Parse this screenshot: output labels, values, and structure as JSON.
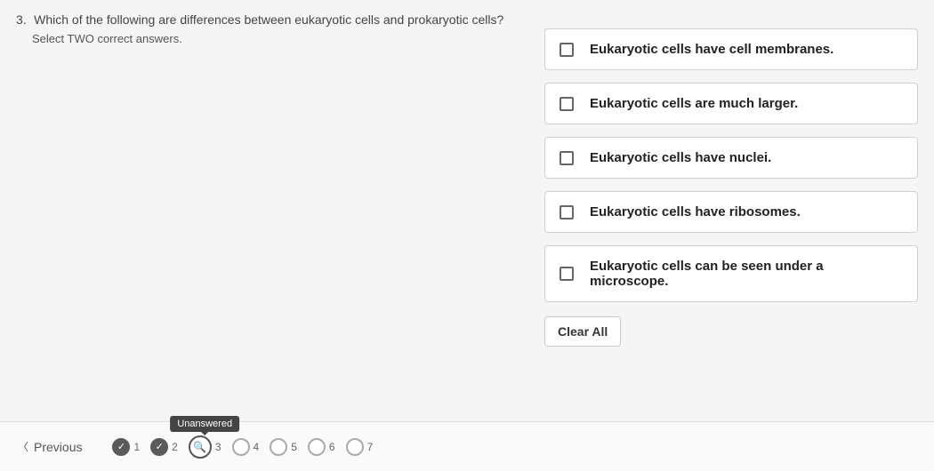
{
  "question": {
    "number": "3.",
    "text": "Which of the following are differences between eukaryotic cells and prokaryotic cells?",
    "instruction": "Select TWO correct answers."
  },
  "options": [
    {
      "label": "Eukaryotic cells have cell membranes."
    },
    {
      "label": "Eukaryotic cells are much larger."
    },
    {
      "label": "Eukaryotic cells have nuclei."
    },
    {
      "label": "Eukaryotic cells have ribosomes."
    },
    {
      "label": "Eukaryotic cells can be seen under a microscope."
    }
  ],
  "buttons": {
    "clear_all": "Clear All",
    "previous": "Previous"
  },
  "tooltip": "Unanswered",
  "nav": [
    {
      "n": "1",
      "state": "done"
    },
    {
      "n": "2",
      "state": "done"
    },
    {
      "n": "3",
      "state": "current"
    },
    {
      "n": "4",
      "state": "todo"
    },
    {
      "n": "5",
      "state": "todo"
    },
    {
      "n": "6",
      "state": "todo"
    },
    {
      "n": "7",
      "state": "todo"
    }
  ],
  "colors": {
    "option_border": "#d0d0d0",
    "text": "#333333",
    "background": "#f5f5f5"
  }
}
